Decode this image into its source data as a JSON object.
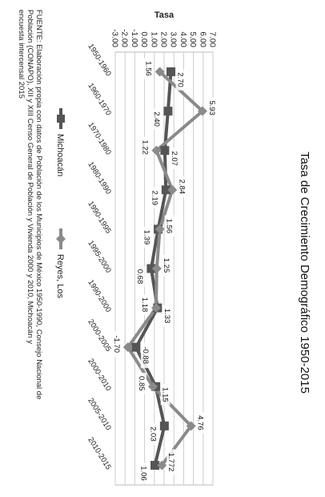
{
  "chart_data": {
    "type": "line",
    "title": "Tasa de Crecimiento Demográfico 1950-2015",
    "ylabel": "Tasa",
    "xlabel": "",
    "categories": [
      "1950-1960",
      "1960-1970",
      "1970-1980",
      "1980-1990",
      "1990-1995",
      "1995-2000",
      "1990-2000",
      "2000-2005",
      "2000-2010",
      "2005-2010",
      "2010-2015"
    ],
    "series": [
      {
        "name": "Michoacán",
        "values": [
          2.7,
          2.4,
          2.07,
          2.19,
          1.39,
          0.68,
          1.33,
          -0.88,
          1.15,
          2.03,
          1.06
        ],
        "color": "#555555",
        "marker": "square"
      },
      {
        "name": "Reyes, Los",
        "values": [
          1.56,
          5.93,
          1.22,
          2.84,
          1.56,
          1.25,
          1.18,
          -1.7,
          0.85,
          4.76,
          1.772
        ],
        "color": "#8a8a8a",
        "marker": "diamond"
      }
    ],
    "data_labels": [
      [
        "2.70",
        "2.40",
        "2.07",
        "2.19",
        "1.39",
        "0.68",
        "1.33",
        "-0.88",
        "1.15",
        "2.03",
        "1.06"
      ],
      [
        "1.56",
        "5.93",
        "1.22",
        "2.84",
        "1.56",
        "1.25",
        "1.18",
        "-1.70",
        "0.85",
        "4.76",
        "1.772"
      ]
    ],
    "yticks": [
      "-3.00",
      "-2.00",
      "-1.00",
      "0.00",
      "1.00",
      "2.00",
      "3.00",
      "4.00",
      "5.00",
      "6.00",
      "7.00"
    ],
    "ylim": [
      -3,
      7
    ],
    "grid": true,
    "legend_position": "bottom",
    "source_lines": [
      "FUENTE: Elaboración propia con datos de Población de los Municipios de México 1950-1990, Consejo Nacional de",
      "Población (CONAPO), XII y XIII Censo General de Población y Vivienda 2000 y 2010, Michoacán y",
      "encuesta intercensal 2015"
    ]
  }
}
